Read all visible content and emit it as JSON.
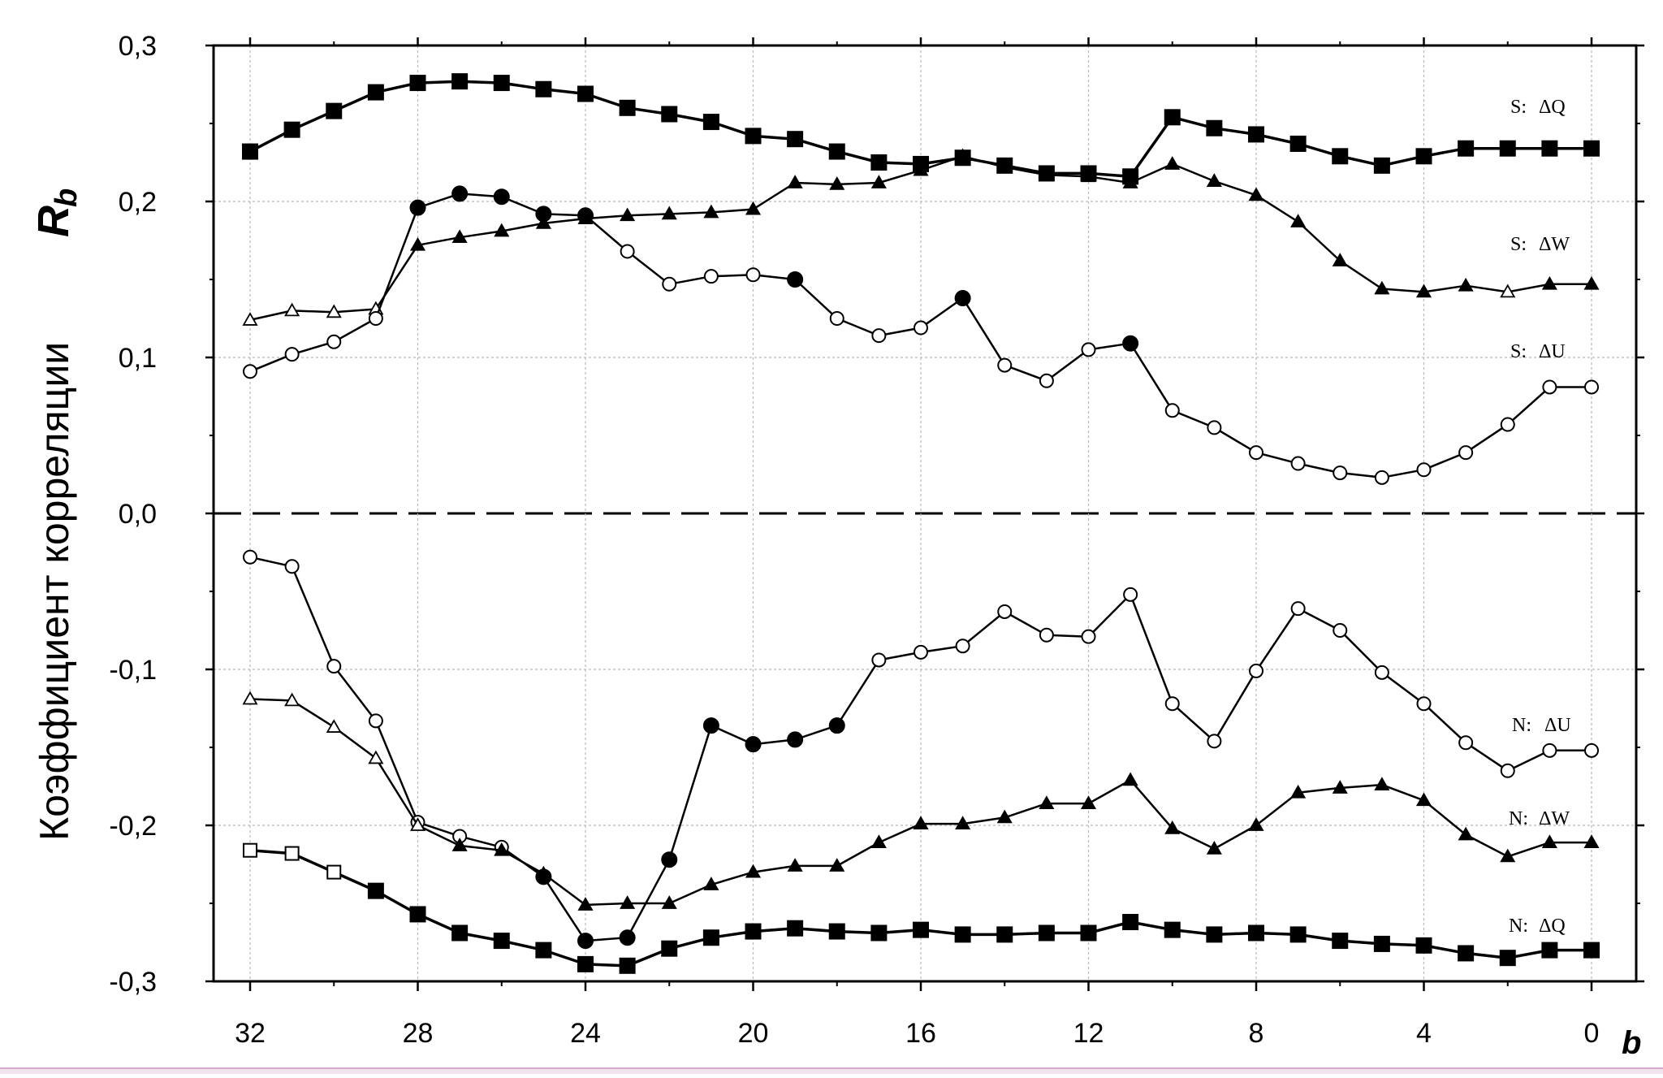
{
  "chart_data": {
    "type": "line",
    "xlabel": "b",
    "ylabel": "Коэффициент корреляции",
    "ylabel_symbol": "R",
    "ylabel_subscript": "b",
    "xlim": [
      32,
      0
    ],
    "ylim": [
      -0.3,
      0.3
    ],
    "x_ticks": [
      "32",
      "28",
      "24",
      "20",
      "16",
      "12",
      "8",
      "4",
      "0"
    ],
    "x_tick_values": [
      32,
      28,
      24,
      20,
      16,
      12,
      8,
      4,
      0
    ],
    "y_ticks": [
      "0,3",
      "0,2",
      "0,1",
      "0,0",
      "-0,1",
      "-0,2",
      "-0,3"
    ],
    "y_tick_values": [
      0.3,
      0.2,
      0.1,
      0.0,
      -0.1,
      -0.2,
      -0.3
    ],
    "grid": true,
    "zero_line": "dashed",
    "x": [
      32,
      31,
      30,
      29,
      28,
      27,
      26,
      25,
      24,
      23,
      22,
      21,
      20,
      19,
      18,
      17,
      16,
      15,
      14,
      13,
      12,
      11,
      10,
      9,
      8,
      7,
      6,
      5,
      4,
      3,
      2,
      1,
      0
    ],
    "series": [
      {
        "name": "S:   ΔQ",
        "marker": "square",
        "line_width": 3.5,
        "values": [
          0.232,
          0.246,
          0.258,
          0.27,
          0.276,
          0.277,
          0.276,
          0.272,
          0.269,
          0.26,
          0.256,
          0.251,
          0.242,
          0.24,
          0.232,
          0.225,
          0.224,
          0.228,
          0.223,
          0.218,
          0.218,
          0.216,
          0.254,
          0.247,
          0.243,
          0.237,
          0.229,
          0.223,
          0.229,
          0.234,
          0.234,
          0.234,
          0.234
        ],
        "filled": [
          true,
          true,
          true,
          true,
          true,
          true,
          true,
          true,
          true,
          true,
          true,
          true,
          true,
          true,
          true,
          true,
          true,
          true,
          true,
          true,
          true,
          true,
          true,
          true,
          true,
          true,
          true,
          true,
          true,
          true,
          true,
          true,
          true
        ]
      },
      {
        "name": "S:   ΔW",
        "marker": "triangle",
        "line_width": 2.5,
        "values": [
          0.124,
          0.13,
          0.129,
          0.131,
          0.172,
          0.177,
          0.181,
          0.186,
          0.189,
          0.191,
          0.192,
          0.193,
          0.195,
          0.212,
          0.211,
          0.212,
          0.22,
          0.229,
          0.222,
          0.217,
          0.216,
          0.212,
          0.224,
          0.213,
          0.204,
          0.187,
          0.162,
          0.144,
          0.142,
          0.146,
          0.142,
          0.147,
          0.147
        ],
        "filled": [
          false,
          false,
          false,
          false,
          true,
          true,
          true,
          true,
          true,
          true,
          true,
          true,
          true,
          true,
          true,
          true,
          true,
          true,
          true,
          true,
          true,
          true,
          true,
          true,
          true,
          true,
          true,
          true,
          true,
          true,
          false,
          true,
          true
        ]
      },
      {
        "name": "S:   ΔU",
        "marker": "circle",
        "line_width": 2.5,
        "values": [
          0.091,
          0.102,
          0.11,
          0.125,
          0.196,
          0.205,
          0.203,
          0.192,
          0.191,
          0.168,
          0.147,
          0.152,
          0.153,
          0.15,
          0.125,
          0.114,
          0.119,
          0.138,
          0.095,
          0.085,
          0.105,
          0.109,
          0.066,
          0.055,
          0.039,
          0.032,
          0.026,
          0.023,
          0.028,
          0.039,
          0.057,
          0.081,
          0.081
        ],
        "filled": [
          false,
          false,
          false,
          false,
          true,
          true,
          true,
          true,
          true,
          false,
          false,
          false,
          false,
          true,
          false,
          false,
          false,
          true,
          false,
          false,
          false,
          true,
          false,
          false,
          false,
          false,
          false,
          false,
          false,
          false,
          false,
          false,
          false
        ]
      },
      {
        "name": "N:   ΔU",
        "marker": "circle",
        "line_width": 2.5,
        "values": [
          -0.028,
          -0.034,
          -0.098,
          -0.133,
          -0.198,
          -0.207,
          -0.214,
          -0.233,
          -0.274,
          -0.272,
          -0.222,
          -0.136,
          -0.148,
          -0.145,
          -0.136,
          -0.094,
          -0.089,
          -0.085,
          -0.063,
          -0.078,
          -0.079,
          -0.052,
          -0.122,
          -0.146,
          -0.101,
          -0.061,
          -0.075,
          -0.102,
          -0.122,
          -0.147,
          -0.165,
          -0.152,
          -0.152
        ],
        "filled": [
          false,
          false,
          false,
          false,
          false,
          false,
          false,
          true,
          true,
          true,
          true,
          true,
          true,
          true,
          true,
          false,
          false,
          false,
          false,
          false,
          false,
          false,
          false,
          false,
          false,
          false,
          false,
          false,
          false,
          false,
          false,
          false,
          false
        ]
      },
      {
        "name": "N:   ΔW",
        "marker": "triangle",
        "line_width": 2.5,
        "values": [
          -0.119,
          -0.12,
          -0.137,
          -0.157,
          -0.2,
          -0.213,
          -0.216,
          -0.231,
          -0.251,
          -0.25,
          -0.25,
          -0.238,
          -0.23,
          -0.226,
          -0.226,
          -0.211,
          -0.199,
          -0.199,
          -0.195,
          -0.186,
          -0.186,
          -0.171,
          -0.202,
          -0.215,
          -0.2,
          -0.179,
          -0.176,
          -0.174,
          -0.184,
          -0.206,
          -0.22,
          -0.211,
          -0.211
        ],
        "filled": [
          false,
          false,
          false,
          false,
          false,
          true,
          true,
          true,
          true,
          true,
          true,
          true,
          true,
          true,
          true,
          true,
          true,
          true,
          true,
          true,
          true,
          true,
          true,
          true,
          true,
          true,
          true,
          true,
          true,
          true,
          true,
          true,
          true
        ]
      },
      {
        "name": "N:   ΔQ",
        "marker": "square",
        "line_width": 3.5,
        "values": [
          -0.216,
          -0.218,
          -0.23,
          -0.242,
          -0.257,
          -0.269,
          -0.274,
          -0.28,
          -0.289,
          -0.29,
          -0.279,
          -0.272,
          -0.268,
          -0.266,
          -0.268,
          -0.269,
          -0.267,
          -0.27,
          -0.27,
          -0.269,
          -0.269,
          -0.262,
          -0.267,
          -0.27,
          -0.269,
          -0.27,
          -0.274,
          -0.276,
          -0.277,
          -0.282,
          -0.285,
          -0.28,
          -0.28
        ],
        "filled": [
          false,
          false,
          false,
          true,
          true,
          true,
          true,
          true,
          true,
          true,
          true,
          true,
          true,
          true,
          true,
          true,
          true,
          true,
          true,
          true,
          true,
          true,
          true,
          true,
          true,
          true,
          true,
          true,
          true,
          true,
          true,
          true,
          true
        ]
      }
    ]
  },
  "series_labels": {
    "s_dq": {
      "prefix": "S:",
      "name": "ΔQ"
    },
    "s_dw": {
      "prefix": "S:",
      "name": "ΔW"
    },
    "s_du": {
      "prefix": "S:",
      "name": "ΔU"
    },
    "n_du": {
      "prefix": "N:",
      "name": "ΔU"
    },
    "n_dw": {
      "prefix": "N:",
      "name": "ΔW"
    },
    "n_dq": {
      "prefix": "N:",
      "name": "ΔQ"
    }
  },
  "colors": {
    "line": "#000000",
    "grid": "#b8b8b8",
    "background": "#ffffff",
    "strip": "#f3e3ef"
  }
}
